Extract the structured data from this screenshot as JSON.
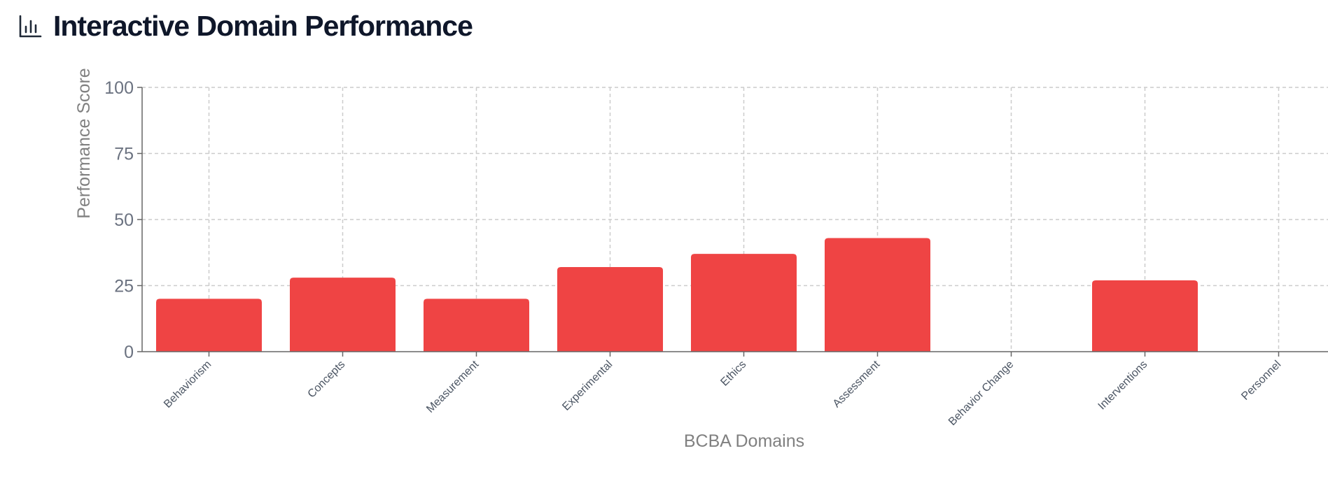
{
  "header": {
    "title": "Interactive Domain Performance",
    "icon": "bar-chart-icon"
  },
  "chart_data": {
    "type": "bar",
    "title": "Interactive Domain Performance",
    "xlabel": "BCBA Domains",
    "ylabel": "Performance Score",
    "ylim": [
      0,
      100
    ],
    "yticks": [
      0,
      25,
      50,
      75,
      100
    ],
    "categories": [
      "Behaviorism",
      "Concepts",
      "Measurement",
      "Experimental",
      "Ethics",
      "Assessment",
      "Behavior Change",
      "Interventions",
      "Personnel"
    ],
    "values": [
      20,
      28,
      20,
      32,
      37,
      43,
      0,
      27,
      0
    ],
    "bar_color": "#ef4444",
    "grid": true
  }
}
